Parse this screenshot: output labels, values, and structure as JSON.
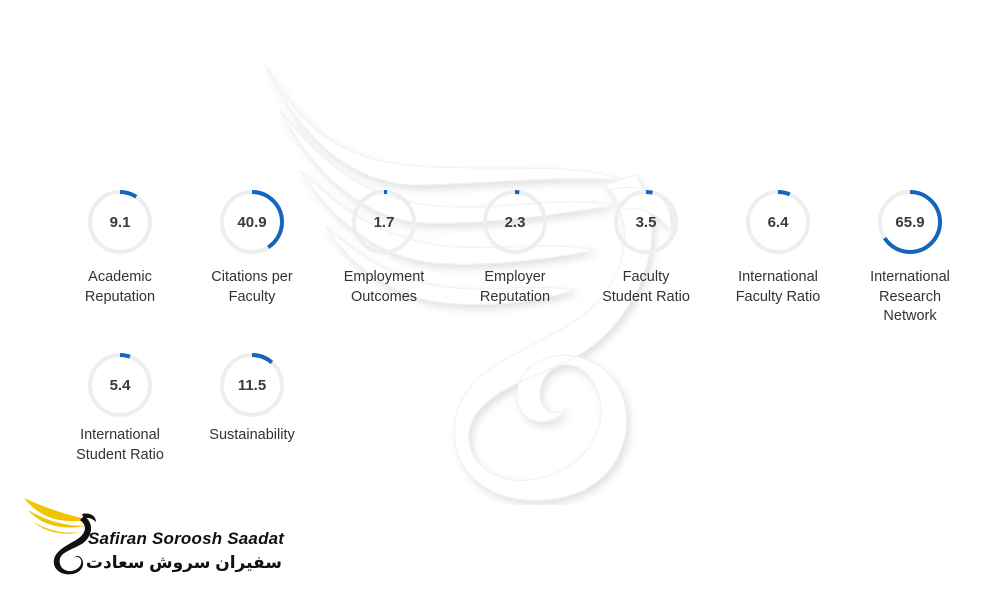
{
  "metrics": [
    {
      "value": "9.1",
      "fraction": 0.091,
      "label_lines": [
        "Academic",
        "Reputation"
      ]
    },
    {
      "value": "40.9",
      "fraction": 0.409,
      "label_lines": [
        "Citations per",
        "Faculty"
      ]
    },
    {
      "value": "1.7",
      "fraction": 0.017,
      "label_lines": [
        "Employment",
        "Outcomes"
      ]
    },
    {
      "value": "2.3",
      "fraction": 0.023,
      "label_lines": [
        "Employer",
        "Reputation"
      ]
    },
    {
      "value": "3.5",
      "fraction": 0.035,
      "label_lines": [
        "Faculty",
        "Student Ratio"
      ]
    },
    {
      "value": "6.4",
      "fraction": 0.064,
      "label_lines": [
        "International",
        "Faculty Ratio"
      ]
    },
    {
      "value": "65.9",
      "fraction": 0.659,
      "label_lines": [
        "International",
        "Research",
        "Network"
      ]
    },
    {
      "value": "5.4",
      "fraction": 0.054,
      "label_lines": [
        "International",
        "Student Ratio"
      ]
    },
    {
      "value": "11.5",
      "fraction": 0.115,
      "label_lines": [
        "Sustainability"
      ]
    }
  ],
  "colors": {
    "ring_track": "#eeeeee",
    "ring_progress": "#1565c0",
    "brand_yellow": "#f2c300",
    "watermark": "#f3f3f3"
  },
  "brand": {
    "name_en": "Safiran Soroosh Saadat",
    "name_fa": "سفیران سروش سعادت",
    "icon": "winged-swan-logo"
  },
  "background": {
    "icon": "winged-swan-watermark"
  }
}
